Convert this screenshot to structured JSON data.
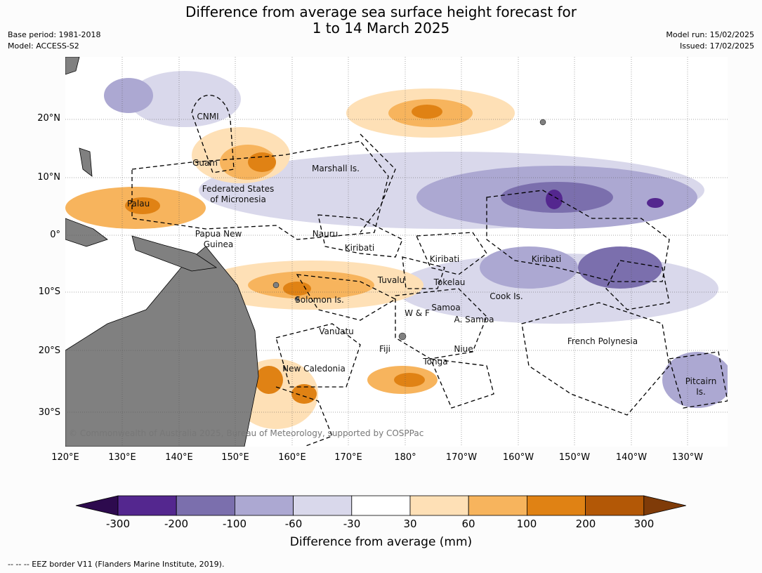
{
  "title_line1": "Difference from average sea surface height forecast for",
  "title_line2": "1 to 14 March 2025",
  "base_period": "Base period: 1981-2018",
  "model": "Model: ACCESS-S2",
  "model_run": "Model run: 15/02/2025",
  "issued": "Issued: 17/02/2025",
  "lat_labels": [
    "20°N",
    "10°N",
    "0°",
    "10°S",
    "20°S",
    "30°S"
  ],
  "lon_labels": [
    "120°E",
    "130°E",
    "140°E",
    "150°E",
    "160°E",
    "170°E",
    "180°",
    "170°W",
    "160°W",
    "150°W",
    "140°W",
    "130°W"
  ],
  "regions": {
    "cnmi": "CNMI",
    "guam": "Guam",
    "marshall": "Marshall Is.",
    "fsm_1": "Federated States",
    "fsm_2": "of Micronesia",
    "palau": "Palau",
    "nauru": "Nauru",
    "png_1": "Papua New",
    "png_2": "Guinea",
    "kiribati_w": "Kiribati",
    "kiribati_c": "Kiribati",
    "kiribati_e": "Kiribati",
    "tuvalu": "Tuvalu",
    "tokelau": "Tokelau",
    "cook": "Cook Is.",
    "solomon": "Solomon Is.",
    "samoa": "Samoa",
    "wf": "W & F",
    "asamoa": "A. Samoa",
    "vanuatu": "Vanuatu",
    "fiji": "Fiji",
    "niue": "Niue",
    "tonga": "Tonga",
    "french_polynesia": "French Polynesia",
    "new_caledonia": "New Caledonia",
    "pitcairn_1": "Pitcairn",
    "pitcairn_2": "Is."
  },
  "copyright": "© Commonwealth of Australia 2025, Bureau of Meteorology, supported by COSPPac",
  "colorbar": {
    "title": "Difference from average (mm)",
    "ticks": [
      "-300",
      "-200",
      "-100",
      "-60",
      "-30",
      "30",
      "60",
      "100",
      "200",
      "300"
    ],
    "colors": [
      "#2d0a4e",
      "#54278f",
      "#7b6fad",
      "#aca8d2",
      "#d9d8eb",
      "#ffffff",
      "#fee0b6",
      "#f7b45d",
      "#e08214",
      "#b35806",
      "#7f3b08"
    ]
  },
  "footnote": "--  --  -- EEZ border V11 (Flanders Marine Institute, 2019)."
}
